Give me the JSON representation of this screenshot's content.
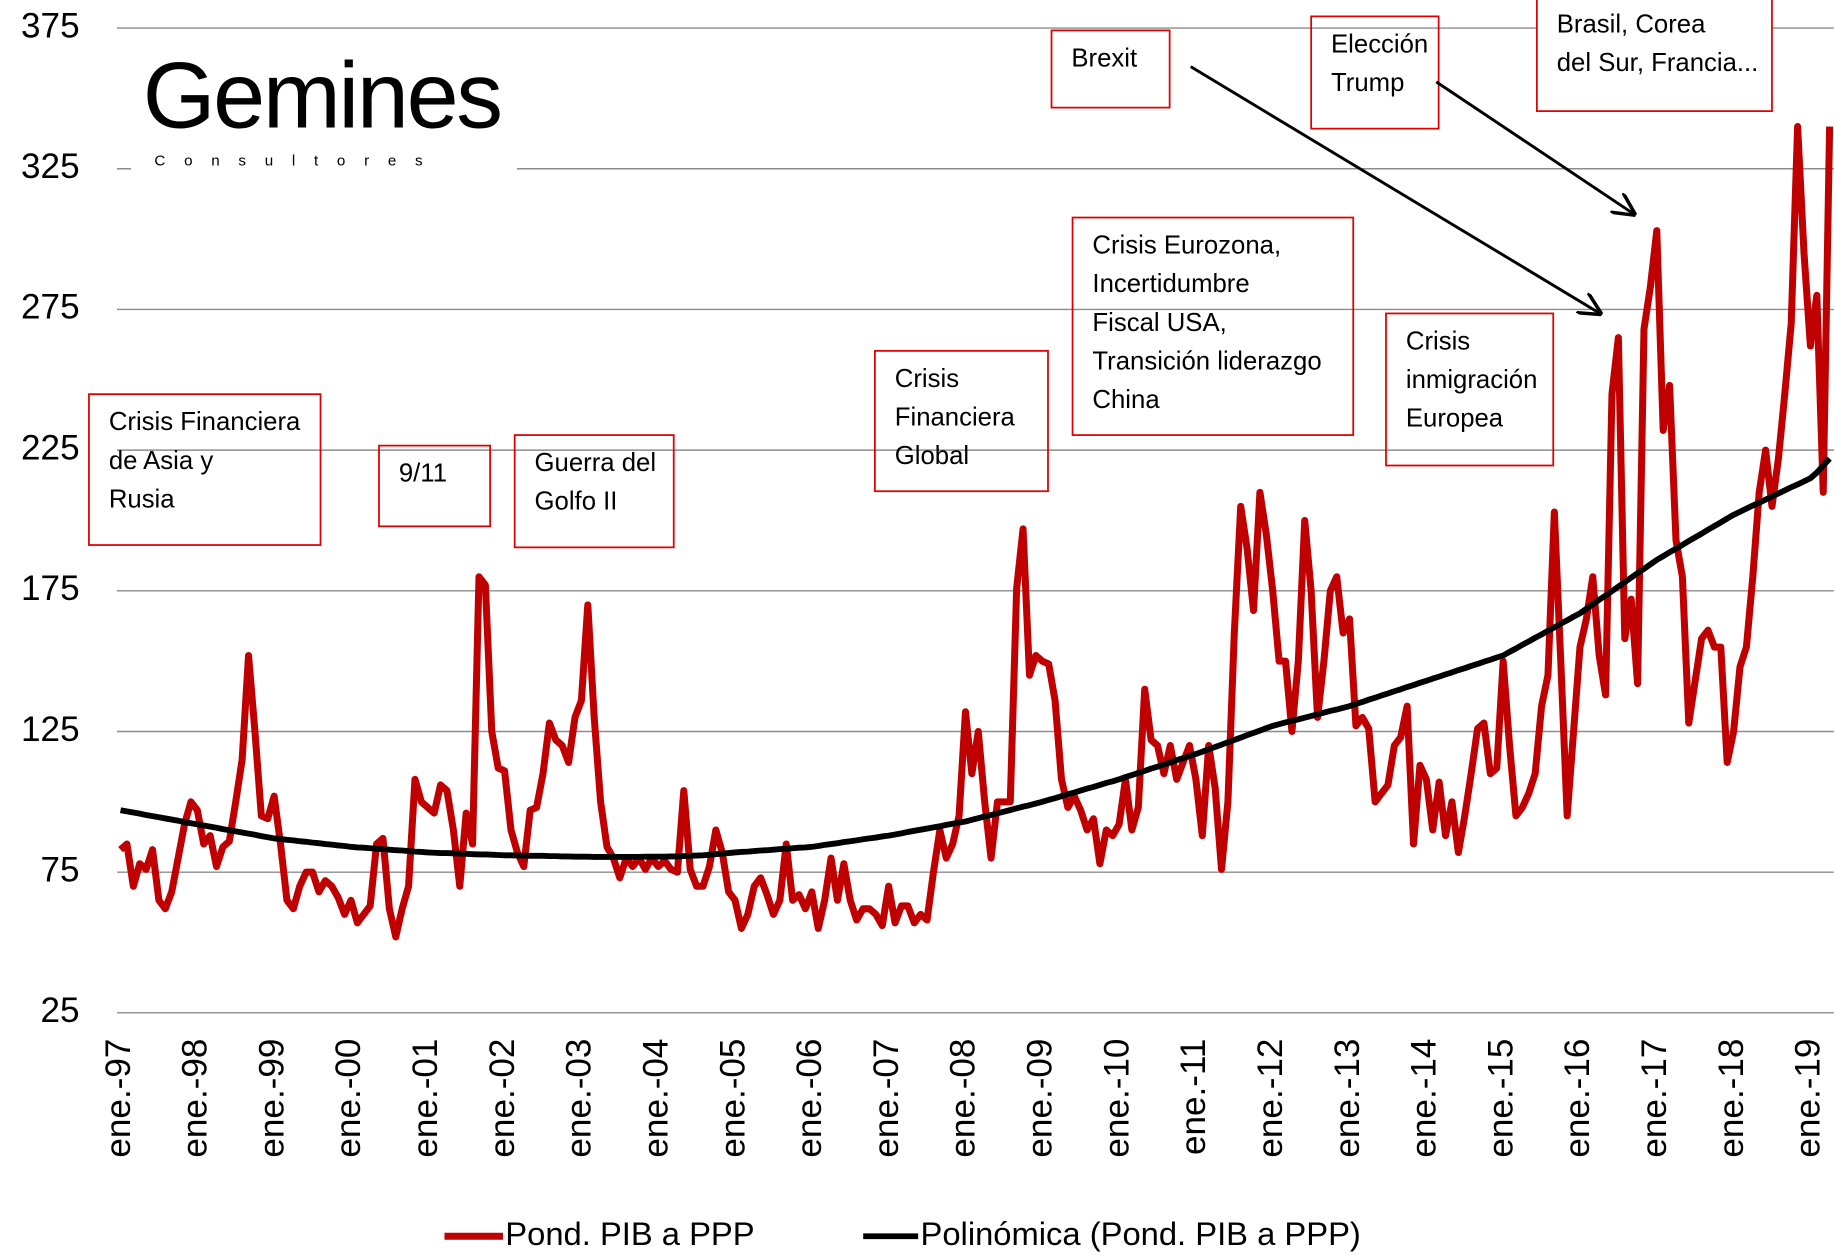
{
  "chart_data": {
    "type": "line",
    "logo": {
      "name": "Gemines",
      "tagline": "Consultores"
    },
    "categories": [
      "ene.-97",
      null,
      null,
      null,
      null,
      null,
      null,
      null,
      null,
      null,
      null,
      null,
      "ene.-98",
      null,
      null,
      null,
      null,
      null,
      null,
      null,
      null,
      null,
      null,
      null,
      "ene.-99",
      null,
      null,
      null,
      null,
      null,
      null,
      null,
      null,
      null,
      null,
      null,
      "ene.-00",
      null,
      null,
      null,
      null,
      null,
      null,
      null,
      null,
      null,
      null,
      null,
      "ene.-01",
      null,
      null,
      null,
      null,
      null,
      null,
      null,
      null,
      null,
      null,
      null,
      "ene.-02",
      null,
      null,
      null,
      null,
      null,
      null,
      null,
      null,
      null,
      null,
      null,
      "ene.-03",
      null,
      null,
      null,
      null,
      null,
      null,
      null,
      null,
      null,
      null,
      null,
      "ene.-04",
      null,
      null,
      null,
      null,
      null,
      null,
      null,
      null,
      null,
      null,
      null,
      "ene.-05",
      null,
      null,
      null,
      null,
      null,
      null,
      null,
      null,
      null,
      null,
      null,
      "ene.-06",
      null,
      null,
      null,
      null,
      null,
      null,
      null,
      null,
      null,
      null,
      null,
      "ene.-07",
      null,
      null,
      null,
      null,
      null,
      null,
      null,
      null,
      null,
      null,
      null,
      "ene.-08",
      null,
      null,
      null,
      null,
      null,
      null,
      null,
      null,
      null,
      null,
      null,
      "ene.-09",
      null,
      null,
      null,
      null,
      null,
      null,
      null,
      null,
      null,
      null,
      null,
      "ene.-10",
      null,
      null,
      null,
      null,
      null,
      null,
      null,
      null,
      null,
      null,
      null,
      "ene.-11",
      null,
      null,
      null,
      null,
      null,
      null,
      null,
      null,
      null,
      null,
      null,
      "ene.-12",
      null,
      null,
      null,
      null,
      null,
      null,
      null,
      null,
      null,
      null,
      null,
      "ene.-13",
      null,
      null,
      null,
      null,
      null,
      null,
      null,
      null,
      null,
      null,
      null,
      "ene.-14",
      null,
      null,
      null,
      null,
      null,
      null,
      null,
      null,
      null,
      null,
      null,
      "ene.-15",
      null,
      null,
      null,
      null,
      null,
      null,
      null,
      null,
      null,
      null,
      null,
      "ene.-16",
      null,
      null,
      null,
      null,
      null,
      null,
      null,
      null,
      null,
      null,
      null,
      "ene.-17",
      null,
      null,
      null,
      null,
      null,
      null,
      null,
      null,
      null,
      null,
      null,
      "ene.-18",
      null,
      null,
      null,
      null,
      null,
      null,
      null,
      null,
      null,
      null,
      null,
      "ene.-19",
      null,
      null,
      null
    ],
    "series": [
      {
        "name": "Pond. PIB a PPP",
        "color": "#c00000",
        "values": [
          83,
          85,
          70,
          78,
          76,
          83,
          65,
          62,
          68,
          80,
          92,
          100,
          97,
          85,
          88,
          77,
          84,
          86,
          100,
          115,
          152,
          125,
          95,
          94,
          102,
          85,
          65,
          62,
          70,
          75,
          75,
          68,
          72,
          70,
          66,
          60,
          65,
          57,
          60,
          63,
          85,
          87,
          62,
          52,
          62,
          70,
          108,
          100,
          98,
          96,
          106,
          104,
          90,
          70,
          96,
          85,
          180,
          177,
          125,
          112,
          111,
          90,
          82,
          77,
          97,
          98,
          110,
          128,
          122,
          120,
          114,
          130,
          136,
          170,
          130,
          100,
          84,
          80,
          73,
          80,
          77,
          80,
          76,
          80,
          77,
          79,
          76,
          75,
          104,
          76,
          70,
          70,
          77,
          90,
          82,
          68,
          65,
          55,
          60,
          70,
          73,
          67,
          60,
          65,
          85,
          65,
          67,
          62,
          68,
          55,
          65,
          80,
          65,
          78,
          65,
          58,
          62,
          62,
          60,
          56,
          70,
          57,
          63,
          63,
          57,
          60,
          58,
          75,
          90,
          80,
          85,
          95,
          132,
          110,
          125,
          100,
          80,
          100,
          100,
          100,
          176,
          197,
          145,
          152,
          150,
          149,
          136,
          108,
          98,
          102,
          97,
          90,
          94,
          78,
          90,
          88,
          92,
          108,
          90,
          98,
          140,
          122,
          120,
          110,
          120,
          108,
          114,
          120,
          108,
          88,
          120,
          105,
          76,
          100,
          160,
          205,
          190,
          168,
          210,
          195,
          175,
          150,
          150,
          125,
          150,
          200,
          175,
          130,
          150,
          175,
          180,
          160,
          165,
          127,
          130,
          126,
          100,
          103,
          106,
          120,
          123,
          134,
          85,
          113,
          108,
          90,
          107,
          88,
          100,
          82,
          95,
          110,
          126,
          128,
          110,
          112,
          150,
          120,
          95,
          98,
          103,
          110,
          134,
          145,
          203,
          150,
          95,
          125,
          155,
          165,
          180,
          152,
          138,
          245,
          265,
          158,
          172,
          142,
          268,
          283,
          303,
          232,
          248,
          193,
          180,
          128,
          143,
          158,
          161,
          155,
          155,
          114,
          125,
          148,
          155,
          180,
          210,
          225,
          205,
          222,
          245,
          270,
          340,
          295,
          262,
          280,
          210,
          340
        ]
      },
      {
        "name": "Polinómica (Pond. PIB a PPP)",
        "color": "#000000",
        "values": [
          97,
          96.6,
          96.2,
          95.8,
          95.3,
          94.9,
          94.5,
          94.1,
          93.7,
          93.3,
          92.8,
          92.4,
          92,
          91.6,
          91.2,
          90.8,
          90.3,
          89.9,
          89.5,
          89.1,
          88.7,
          88.3,
          87.8,
          87.4,
          87,
          86.8,
          86.5,
          86.3,
          86,
          85.8,
          85.5,
          85.3,
          85,
          84.8,
          84.5,
          84.3,
          84,
          83.8,
          83.7,
          83.5,
          83.3,
          83.2,
          83,
          82.8,
          82.7,
          82.5,
          82.3,
          82.2,
          82,
          81.9,
          81.8,
          81.8,
          81.7,
          81.6,
          81.5,
          81.4,
          81.3,
          81.3,
          81.2,
          81.1,
          81,
          81,
          80.9,
          80.9,
          80.8,
          80.8,
          80.8,
          80.7,
          80.7,
          80.6,
          80.6,
          80.5,
          80.5,
          80.5,
          80.4,
          80.4,
          80.4,
          80.4,
          80.4,
          80.4,
          80.4,
          80.4,
          80.5,
          80.5,
          80.5,
          80.5,
          80.6,
          80.6,
          80.7,
          80.8,
          80.9,
          81,
          81.2,
          81.4,
          81.6,
          81.8,
          82,
          82.2,
          82.3,
          82.5,
          82.7,
          82.8,
          83,
          83.2,
          83.3,
          83.5,
          83.7,
          83.8,
          84,
          84.3,
          84.7,
          85,
          85.3,
          85.7,
          86,
          86.3,
          86.7,
          87,
          87.3,
          87.7,
          88,
          88.4,
          88.8,
          89.3,
          89.7,
          90.1,
          90.5,
          90.9,
          91.3,
          91.8,
          92.2,
          92.6,
          93,
          93.6,
          94.2,
          94.8,
          95.3,
          95.9,
          96.5,
          97.1,
          97.7,
          98.3,
          98.8,
          99.4,
          100,
          100.7,
          101.3,
          102,
          102.7,
          103.3,
          104,
          104.7,
          105.3,
          106,
          106.7,
          107.3,
          108,
          108.8,
          109.5,
          110.3,
          111,
          111.8,
          112.5,
          113.3,
          114,
          114.8,
          115.5,
          116.3,
          117,
          117.8,
          118.7,
          119.5,
          120.3,
          121.2,
          122,
          122.8,
          123.7,
          124.5,
          125.3,
          126.2,
          127,
          127.6,
          128.2,
          128.8,
          129.3,
          129.9,
          130.5,
          131.1,
          131.7,
          132.3,
          132.8,
          133.4,
          134,
          134.8,
          135.5,
          136.3,
          137,
          137.8,
          138.5,
          139.3,
          140,
          140.8,
          141.5,
          142.3,
          143,
          143.8,
          144.5,
          145.3,
          146,
          146.8,
          147.5,
          148.3,
          149,
          149.8,
          150.5,
          151.3,
          152,
          153.3,
          154.5,
          155.8,
          157,
          158.3,
          159.5,
          160.8,
          162,
          163.3,
          164.5,
          165.8,
          167,
          168.6,
          170.2,
          171.8,
          173.3,
          174.9,
          176.5,
          178.1,
          179.7,
          181.3,
          182.8,
          184.4,
          186,
          187.3,
          188.7,
          190,
          191.3,
          192.7,
          194,
          195.3,
          196.7,
          198,
          199.3,
          200.7,
          202,
          203.1,
          204.2,
          205.3,
          206.3,
          207.4,
          208.5,
          209.6,
          210.7,
          211.8,
          212.8,
          213.9,
          215,
          217,
          219.5,
          222
        ]
      }
    ],
    "ylim": [
      25,
      375
    ],
    "yticks": [
      25,
      75,
      125,
      175,
      225,
      275,
      325,
      375
    ],
    "grid": true,
    "legend": "bottom",
    "annotations": [
      {
        "lines": [
          "Crisis Financiera",
          "de Asia y",
          "Rusia"
        ]
      },
      {
        "lines": [
          "9/11"
        ]
      },
      {
        "lines": [
          "Guerra del",
          "Golfo II"
        ]
      },
      {
        "lines": [
          "Crisis",
          "Financiera",
          "Global"
        ]
      },
      {
        "lines": [
          "Crisis Eurozona,",
          "Incertidumbre",
          "Fiscal USA,",
          "Transición liderazgo",
          "China"
        ]
      },
      {
        "lines": [
          "Crisis",
          "inmigración",
          "Europea"
        ]
      },
      {
        "lines": [
          "Brexit"
        ]
      },
      {
        "lines": [
          "Elección",
          "Trump"
        ]
      },
      {
        "lines": [
          "Brasil, Corea",
          "del Sur, Francia..."
        ]
      }
    ]
  }
}
